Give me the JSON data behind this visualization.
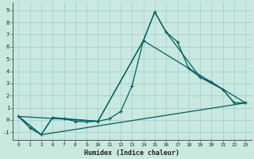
{
  "xlabel": "Humidex (Indice chaleur)",
  "bg_color": "#c8e8e0",
  "grid_color": "#a0cccc",
  "line_color": "#006060",
  "xtick_labels": [
    "0",
    "1",
    "2",
    "6",
    "7",
    "8",
    "9",
    "10",
    "11",
    "12",
    "13",
    "14",
    "15",
    "16",
    "17",
    "18",
    "19",
    "20",
    "21",
    "22",
    "23"
  ],
  "ytick_labels": [
    "-1",
    "0",
    "1",
    "2",
    "3",
    "4",
    "5",
    "6",
    "7",
    "8",
    "9"
  ],
  "ytick_vals": [
    -1,
    0,
    1,
    2,
    3,
    4,
    5,
    6,
    7,
    8,
    9
  ],
  "ylim": [
    -1.6,
    9.6
  ],
  "line1_xi": [
    0,
    1,
    2,
    3,
    4,
    5,
    6,
    7,
    8,
    9,
    10,
    11,
    12,
    13,
    14,
    15,
    16,
    17,
    18,
    19,
    20
  ],
  "line1_y": [
    0.3,
    -0.65,
    -1.2,
    0.2,
    0.1,
    -0.1,
    -0.15,
    -0.1,
    0.1,
    0.7,
    2.8,
    6.5,
    8.85,
    7.2,
    6.4,
    4.2,
    3.5,
    3.1,
    2.5,
    1.4,
    1.4
  ],
  "line2_xi": [
    0,
    2,
    3,
    7,
    11,
    12,
    13,
    16,
    18,
    19,
    20
  ],
  "line2_y": [
    0.3,
    -1.2,
    0.2,
    -0.1,
    6.5,
    8.85,
    7.2,
    3.5,
    2.5,
    1.4,
    1.4
  ],
  "line3_xi": [
    0,
    2,
    20
  ],
  "line3_y": [
    0.3,
    -1.2,
    1.4
  ],
  "line4_xi": [
    0,
    7,
    11,
    20
  ],
  "line4_y": [
    0.3,
    -0.1,
    6.5,
    1.4
  ]
}
